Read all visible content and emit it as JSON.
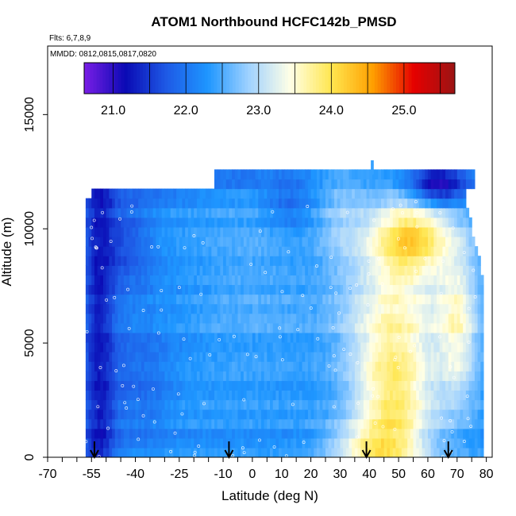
{
  "chart_data": {
    "type": "heatmap",
    "title": "ATOM1 Northbound HCFC142b_PMSD",
    "flights_note": "Flts: 6,7,8,9",
    "dates_note": "MMDD: 0812,0815,0817,0820",
    "xlabel": "Latitude (deg N)",
    "ylabel": "Altitude (m)",
    "xlim": [
      -70,
      82
    ],
    "ylim": [
      0,
      18000
    ],
    "x_ticks": [
      -70,
      -55,
      -40,
      -25,
      -10,
      0,
      10,
      20,
      30,
      40,
      50,
      60,
      70,
      80
    ],
    "x_tick_labels": [
      "-70",
      "-55",
      "-40",
      "-25",
      "-10",
      "0",
      "10",
      "20",
      "30",
      "40",
      "50",
      "60",
      "70",
      "80"
    ],
    "y_ticks": [
      0,
      5000,
      10000,
      15000
    ],
    "y_tick_labels": [
      "0",
      "5000",
      "10000",
      "15000"
    ],
    "colorbar": {
      "min": 20.6,
      "max": 25.7,
      "ticks": [
        21.0,
        22.0,
        23.0,
        24.0,
        25.0
      ],
      "tick_labels": [
        "21.0",
        "22.0",
        "23.0",
        "24.0",
        "25.0"
      ],
      "colors": [
        "#7a1ee6",
        "#0a0ab4",
        "#1e5ae6",
        "#1e96ff",
        "#a0d2ff",
        "#ffffe6",
        "#ffe650",
        "#ffa000",
        "#e60000",
        "#9b1414"
      ]
    },
    "profile_arrows_lat": [
      -54,
      -8,
      39,
      67
    ],
    "coverage_lat": [
      -57,
      79
    ],
    "upper_extension": {
      "lat_range": [
        -13,
        76
      ],
      "alt_range": [
        11400,
        12400
      ]
    },
    "field_summary": [
      {
        "lat_range": [
          -57,
          -48
        ],
        "alt_range": [
          0,
          11500
        ],
        "value": 21.2
      },
      {
        "lat_range": [
          -48,
          -35
        ],
        "alt_range": [
          7000,
          11500
        ],
        "value": 21.3
      },
      {
        "lat_range": [
          -48,
          20
        ],
        "alt_range": [
          0,
          7000
        ],
        "value": 22.2
      },
      {
        "lat_range": [
          -10,
          30
        ],
        "alt_range": [
          7000,
          12400
        ],
        "value": 22.3
      },
      {
        "lat_range": [
          30,
          50
        ],
        "alt_range": [
          0,
          3000
        ],
        "value": 23.7
      },
      {
        "lat_range": [
          35,
          55
        ],
        "alt_range": [
          0,
          1000
        ],
        "value": 24.3
      },
      {
        "lat_range": [
          45,
          65
        ],
        "alt_range": [
          8000,
          10500
        ],
        "value": 24.5
      },
      {
        "lat_range": [
          60,
          75
        ],
        "alt_range": [
          10500,
          12000
        ],
        "value": 21.3
      },
      {
        "lat_range": [
          65,
          75
        ],
        "alt_range": [
          3000,
          7000
        ],
        "value": 23.6
      }
    ]
  }
}
